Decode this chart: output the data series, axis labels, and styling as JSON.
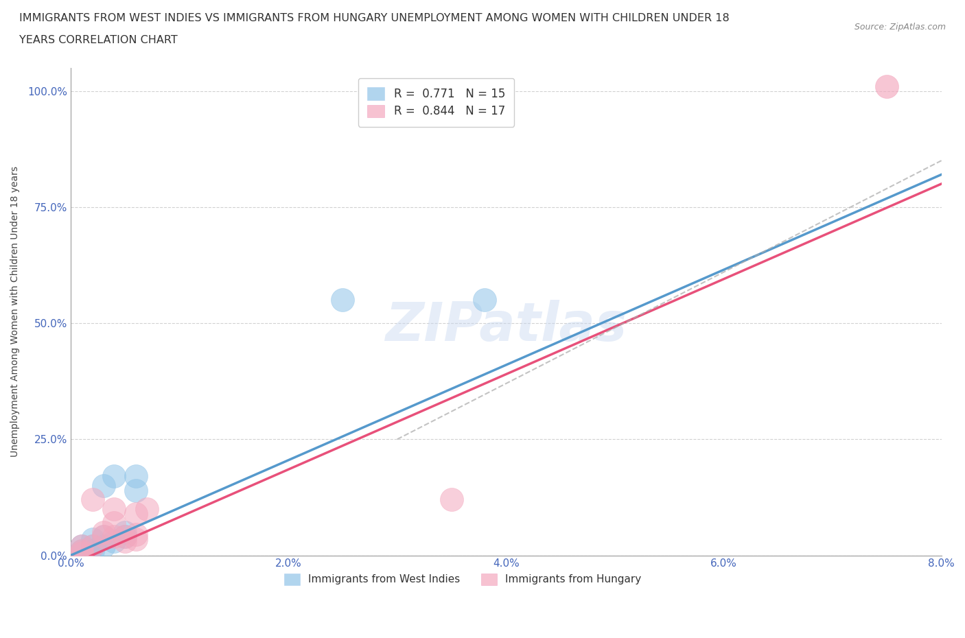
{
  "title_line1": "IMMIGRANTS FROM WEST INDIES VS IMMIGRANTS FROM HUNGARY UNEMPLOYMENT AMONG WOMEN WITH CHILDREN UNDER 18",
  "title_line2": "YEARS CORRELATION CHART",
  "source_text": "Source: ZipAtlas.com",
  "ylabel": "Unemployment Among Women with Children Under 18 years",
  "xlim": [
    0.0,
    0.08
  ],
  "ylim": [
    0.0,
    1.05
  ],
  "xticks": [
    0.0,
    0.01,
    0.02,
    0.03,
    0.04,
    0.05,
    0.06,
    0.07,
    0.08
  ],
  "xticklabels": [
    "0.0%",
    "",
    "2.0%",
    "",
    "4.0%",
    "",
    "6.0%",
    "",
    "8.0%"
  ],
  "yticks": [
    0.0,
    0.25,
    0.5,
    0.75,
    1.0
  ],
  "yticklabels": [
    "0.0%",
    "25.0%",
    "50.0%",
    "75.0%",
    "100.0%"
  ],
  "west_indies_color": "#90c4e8",
  "hungary_color": "#f4a8be",
  "west_indies_line_color": "#5599cc",
  "hungary_line_color": "#e8507a",
  "watermark": "ZIPatlas",
  "watermark_color": "#c8d8f0",
  "background_color": "#ffffff",
  "grid_color": "#cccccc",
  "wi_line_intercept": 0.0,
  "wi_line_slope": 10.5,
  "hu_line_intercept": -0.03,
  "hu_line_slope": 10.8,
  "west_indies_x": [
    0.001,
    0.001,
    0.002,
    0.002,
    0.002,
    0.003,
    0.003,
    0.003,
    0.004,
    0.004,
    0.005,
    0.005,
    0.006,
    0.006,
    0.025
  ],
  "west_indies_y": [
    0.01,
    0.02,
    0.01,
    0.02,
    0.035,
    0.02,
    0.04,
    0.15,
    0.03,
    0.17,
    0.04,
    0.05,
    0.14,
    0.17,
    0.55
  ],
  "hungary_x": [
    0.001,
    0.001,
    0.001,
    0.002,
    0.002,
    0.003,
    0.003,
    0.004,
    0.004,
    0.004,
    0.005,
    0.005,
    0.006,
    0.006,
    0.006,
    0.007,
    0.035
  ],
  "hungary_y": [
    0.005,
    0.01,
    0.02,
    0.02,
    0.12,
    0.04,
    0.05,
    0.04,
    0.07,
    0.1,
    0.03,
    0.04,
    0.035,
    0.045,
    0.09,
    0.1,
    0.12
  ]
}
